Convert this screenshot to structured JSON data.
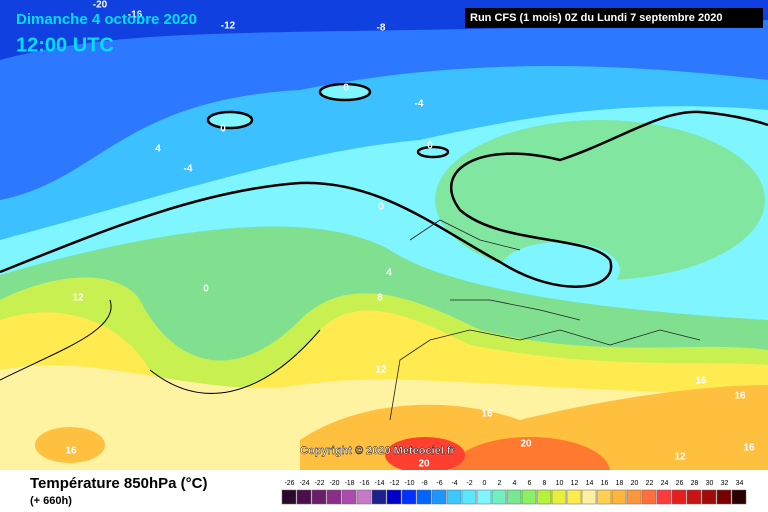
{
  "header": {
    "date": "Dimanche 4 octobre 2020",
    "time": "12:00 UTC",
    "run": "Run CFS (1 mois) 0Z du Lundi 7 septembre 2020"
  },
  "copyright": "Copyright © 2020 Meteociel.fr",
  "footer": {
    "title": "Température 850hPa (°C)",
    "lead": "(+ 660h)"
  },
  "contour_labels": [
    -20,
    -16,
    -12,
    -8,
    0,
    -4,
    0,
    4,
    0,
    -4,
    0,
    0,
    4,
    12,
    8,
    12,
    16,
    16,
    16,
    20,
    16,
    20,
    12,
    16
  ],
  "scale": {
    "values": [
      -26,
      -24,
      -22,
      -20,
      -18,
      -16,
      -14,
      -12,
      -10,
      -8,
      -6,
      -4,
      -2,
      0,
      2,
      4,
      6,
      8,
      10,
      12,
      14,
      16,
      18,
      20,
      22,
      24,
      26,
      28,
      30,
      32,
      34
    ],
    "colors": [
      "#2a0a2a",
      "#4b0f4b",
      "#6a1e6a",
      "#8c2d8c",
      "#ad4aad",
      "#c878c8",
      "#1e1e8c",
      "#0000c8",
      "#0032ff",
      "#0064ff",
      "#1e96ff",
      "#3cc8ff",
      "#5ae6ff",
      "#7ff5ff",
      "#70f0c0",
      "#78e890",
      "#8cf064",
      "#b4f03c",
      "#e6f03c",
      "#ffeb50",
      "#fff0a0",
      "#ffd050",
      "#ffb43c",
      "#ff963c",
      "#ff6e3c",
      "#ff3c3c",
      "#e61e1e",
      "#c81414",
      "#a00a0a",
      "#780000",
      "#280000"
    ]
  }
}
